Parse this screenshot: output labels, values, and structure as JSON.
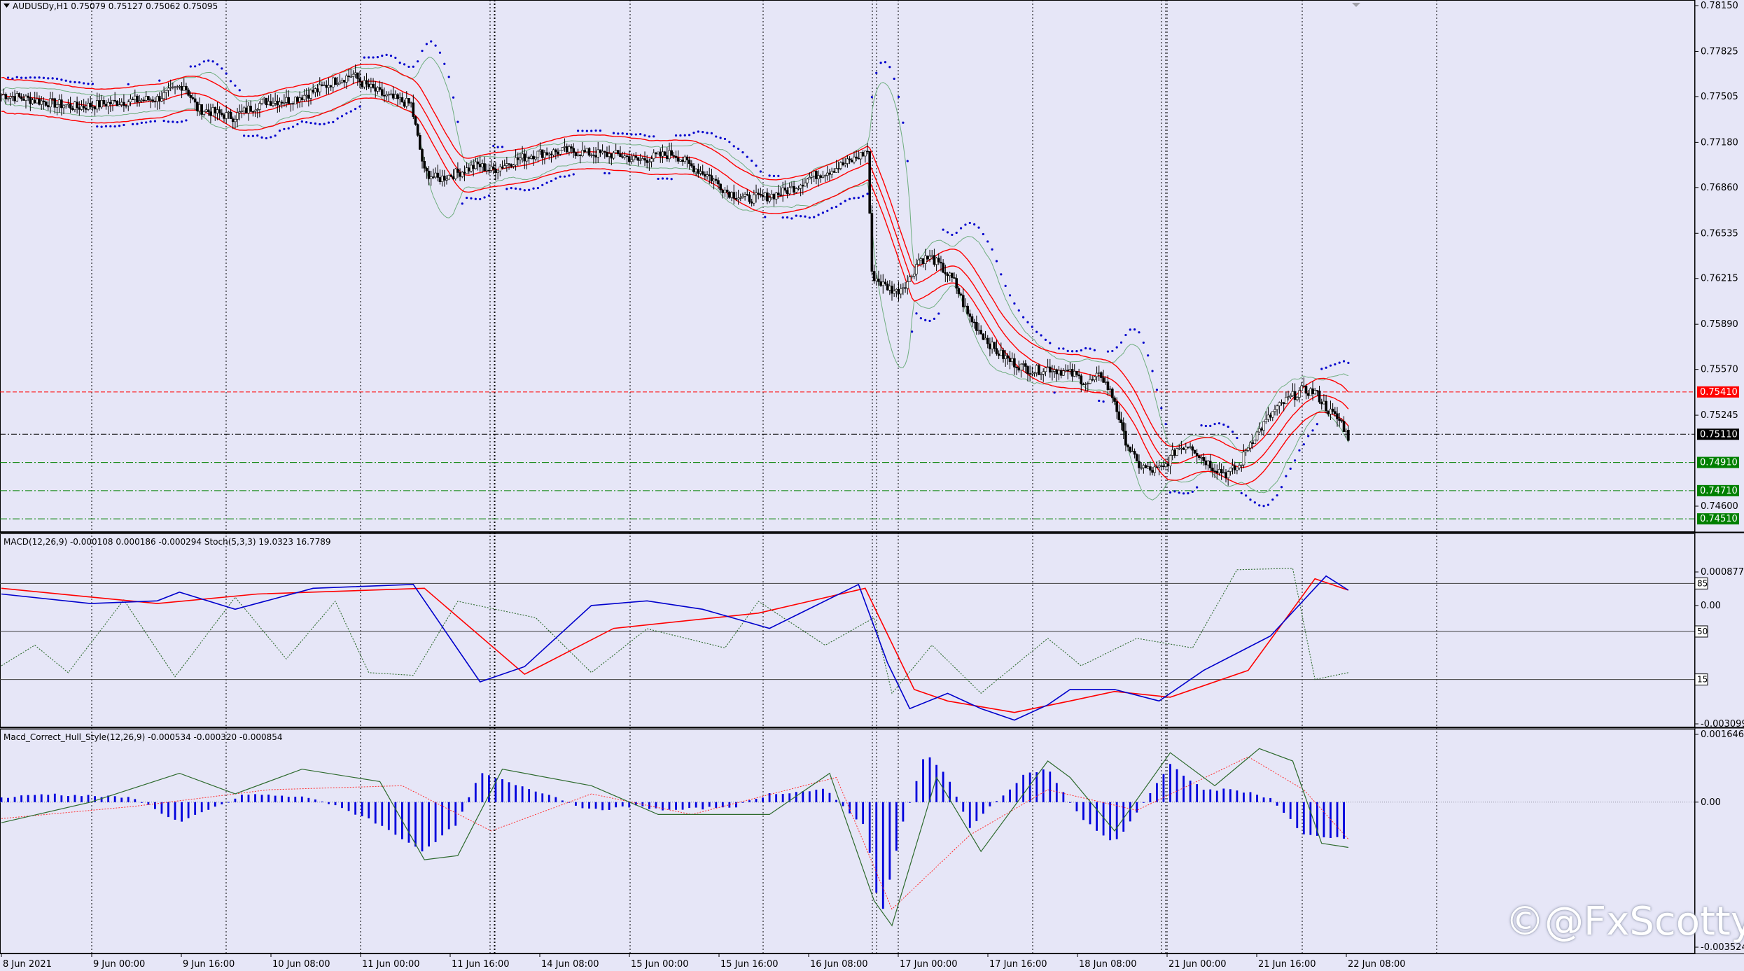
{
  "window": {
    "symbol_line": "AUDUSDy,H1  0.75079 0.75127 0.75062 0.75095"
  },
  "colors": {
    "background": "#e6e6f7",
    "candle": "#000000",
    "envelope_band": "#ff0000",
    "bollinger_band": "#6fae7f",
    "sar_dots": "#0000cc",
    "macd_main": "#0000cc",
    "macd_signal": "#ff0000",
    "stoch_line": "#2d6a2d",
    "hist_bars": "#0000dd",
    "hull_signal": "#ff3030",
    "hull_line": "#2d6a2d",
    "price_tag_red": "#ff0000",
    "price_tag_black": "#000000",
    "price_tag_green": "#008000"
  },
  "watermark": {
    "text": "@FxScotty",
    "icon": "copyright-circle-icon"
  },
  "chart_data": [
    {
      "type": "candlestick",
      "title": "AUDUSDy,H1  0.75079 0.75127 0.75062 0.75095",
      "x_labels": [
        "8 Jun 2021",
        "9 Jun 00:00",
        "9 Jun 16:00",
        "10 Jun 08:00",
        "11 Jun 00:00",
        "11 Jun 16:00",
        "14 Jun 08:00",
        "15 Jun 00:00",
        "15 Jun 16:00",
        "16 Jun 08:00",
        "17 Jun 00:00",
        "17 Jun 16:00",
        "18 Jun 08:00",
        "21 Jun 00:00",
        "21 Jun 16:00",
        "22 Jun 08:00"
      ],
      "y_ticks": [
        "0.78150",
        "0.77825",
        "0.77505",
        "0.77180",
        "0.76860",
        "0.76535",
        "0.76215",
        "0.75890",
        "0.75570",
        "0.75245",
        "0.74600"
      ],
      "ylim": [
        0.7447,
        0.7815
      ],
      "price_tags": [
        {
          "label": "0.75410",
          "value": 0.7541,
          "style": "red"
        },
        {
          "label": "0.75110",
          "value": 0.7511,
          "style": "black"
        },
        {
          "label": "0.74910",
          "value": 0.7491,
          "style": "green"
        },
        {
          "label": "0.74710",
          "value": 0.7471,
          "style": "green"
        },
        {
          "label": "0.74510",
          "value": 0.7451,
          "style": "green"
        }
      ],
      "close_path": [
        [
          0,
          0.7752
        ],
        [
          18,
          0.7747
        ],
        [
          34,
          0.7743
        ],
        [
          55,
          0.7747
        ],
        [
          70,
          0.7749
        ],
        [
          82,
          0.7759
        ],
        [
          88,
          0.7742
        ],
        [
          104,
          0.7736
        ],
        [
          118,
          0.7747
        ],
        [
          130,
          0.7748
        ],
        [
          142,
          0.7755
        ],
        [
          150,
          0.7762
        ],
        [
          158,
          0.7766
        ],
        [
          162,
          0.776
        ],
        [
          172,
          0.7751
        ],
        [
          184,
          0.7745
        ],
        [
          190,
          0.7697
        ],
        [
          196,
          0.7692
        ],
        [
          206,
          0.7697
        ],
        [
          214,
          0.7702
        ],
        [
          220,
          0.7698
        ],
        [
          230,
          0.7705
        ],
        [
          240,
          0.771
        ],
        [
          254,
          0.7712
        ],
        [
          266,
          0.771
        ],
        [
          278,
          0.7709
        ],
        [
          286,
          0.7705
        ],
        [
          294,
          0.7708
        ],
        [
          302,
          0.771
        ],
        [
          310,
          0.7701
        ],
        [
          318,
          0.7694
        ],
        [
          326,
          0.7683
        ],
        [
          334,
          0.7678
        ],
        [
          342,
          0.7679
        ],
        [
          350,
          0.7682
        ],
        [
          356,
          0.7686
        ],
        [
          364,
          0.7694
        ],
        [
          372,
          0.7698
        ],
        [
          382,
          0.7705
        ],
        [
          389,
          0.7712
        ],
        [
          391,
          0.7624
        ],
        [
          396,
          0.7617
        ],
        [
          402,
          0.7612
        ],
        [
          408,
          0.7621
        ],
        [
          412,
          0.7635
        ],
        [
          418,
          0.7636
        ],
        [
          424,
          0.7626
        ],
        [
          428,
          0.7619
        ],
        [
          434,
          0.7596
        ],
        [
          440,
          0.7583
        ],
        [
          446,
          0.7571
        ],
        [
          452,
          0.7564
        ],
        [
          458,
          0.7559
        ],
        [
          464,
          0.7556
        ],
        [
          470,
          0.7558
        ],
        [
          476,
          0.7556
        ],
        [
          482,
          0.7553
        ],
        [
          488,
          0.7547
        ],
        [
          494,
          0.7553
        ],
        [
          500,
          0.7535
        ],
        [
          504,
          0.751
        ],
        [
          510,
          0.749
        ],
        [
          516,
          0.7485
        ],
        [
          522,
          0.7487
        ],
        [
          528,
          0.7501
        ],
        [
          534,
          0.7504
        ],
        [
          538,
          0.7496
        ],
        [
          544,
          0.7488
        ],
        [
          550,
          0.7483
        ],
        [
          556,
          0.7488
        ],
        [
          560,
          0.7503
        ],
        [
          566,
          0.7516
        ],
        [
          572,
          0.7528
        ],
        [
          578,
          0.7536
        ],
        [
          584,
          0.7542
        ],
        [
          590,
          0.7541
        ],
        [
          596,
          0.7528
        ],
        [
          602,
          0.7519
        ],
        [
          605,
          0.7509
        ]
      ],
      "overlays": [
        "Envelopes",
        "Bollinger Bands",
        "Parabolic SAR"
      ]
    },
    {
      "type": "line",
      "title": "MACD(12,26,9) -0.000108 0.000186 -0.000294  Stoch(5,3,3) 19.0323 16.7789",
      "y_ticks": [
        "0.000877",
        "0.00",
        "-0.003099"
      ],
      "levels": [
        "85",
        "50",
        "15"
      ],
      "series": [
        {
          "name": "MACD",
          "points": [
            [
              0,
              0.0003
            ],
            [
              40,
              5e-05
            ],
            [
              70,
              0.00012
            ],
            [
              80,
              0.00035
            ],
            [
              105,
              -0.0001
            ],
            [
              140,
              0.00045
            ],
            [
              185,
              0.00055
            ],
            [
              215,
              -0.002
            ],
            [
              235,
              -0.0016
            ],
            [
              265,
              0.0
            ],
            [
              290,
              0.00012
            ],
            [
              315,
              -0.0001
            ],
            [
              345,
              -0.0006
            ],
            [
              385,
              0.00055
            ],
            [
              398,
              -0.0015
            ],
            [
              408,
              -0.0027
            ],
            [
              425,
              -0.0023
            ],
            [
              440,
              -0.0027
            ],
            [
              455,
              -0.003
            ],
            [
              470,
              -0.0026
            ],
            [
              480,
              -0.0022
            ],
            [
              500,
              -0.0022
            ],
            [
              520,
              -0.0025
            ],
            [
              540,
              -0.0017
            ],
            [
              570,
              -0.0008
            ],
            [
              595,
              0.00077
            ],
            [
              605,
              0.0004
            ]
          ]
        },
        {
          "name": "Signal",
          "points": [
            [
              0,
              0.00045
            ],
            [
              70,
              5e-05
            ],
            [
              115,
              0.0003
            ],
            [
              190,
              0.00045
            ],
            [
              235,
              -0.0018
            ],
            [
              275,
              -0.0006
            ],
            [
              340,
              -0.0002
            ],
            [
              388,
              0.00045
            ],
            [
              410,
              -0.0022
            ],
            [
              425,
              -0.0025
            ],
            [
              455,
              -0.0028
            ],
            [
              480,
              -0.0025
            ],
            [
              500,
              -0.00225
            ],
            [
              525,
              -0.0024
            ],
            [
              560,
              -0.0017
            ],
            [
              590,
              0.0007
            ],
            [
              605,
              0.0004
            ]
          ]
        },
        {
          "name": "Stoch",
          "points": [
            [
              0,
              25
            ],
            [
              15,
              40
            ],
            [
              30,
              20
            ],
            [
              55,
              73
            ],
            [
              78,
              17
            ],
            [
              105,
              75
            ],
            [
              128,
              30
            ],
            [
              150,
              72
            ],
            [
              165,
              20
            ],
            [
              185,
              18
            ],
            [
              205,
              72
            ],
            [
              240,
              60
            ],
            [
              265,
              20
            ],
            [
              290,
              52
            ],
            [
              325,
              38
            ],
            [
              340,
              72
            ],
            [
              370,
              40
            ],
            [
              392,
              60
            ],
            [
              400,
              5
            ],
            [
              418,
              40
            ],
            [
              440,
              5
            ],
            [
              470,
              45
            ],
            [
              485,
              25
            ],
            [
              510,
              45
            ],
            [
              535,
              38
            ],
            [
              555,
              95
            ],
            [
              580,
              96
            ],
            [
              590,
              15
            ],
            [
              605,
              20
            ]
          ]
        }
      ]
    },
    {
      "type": "bar",
      "title": "Macd_Correct_Hull_Style(12,26,9) -0.000534 -0.000320 -0.000854",
      "y_ticks": [
        "0.001646",
        "0.00",
        "-0.003524"
      ],
      "series": [
        {
          "name": "Histogram",
          "points": [
            [
              0,
              0.0001
            ],
            [
              20,
              0.0002
            ],
            [
              60,
              0.0001
            ],
            [
              80,
              -0.0005
            ],
            [
              110,
              0.0002
            ],
            [
              140,
              0.0001
            ],
            [
              165,
              -0.0004
            ],
            [
              190,
              -0.0012
            ],
            [
              205,
              -0.0005
            ],
            [
              215,
              0.0007
            ],
            [
              245,
              0.0002
            ],
            [
              265,
              -0.0002
            ],
            [
              285,
              -0.0001
            ],
            [
              300,
              -0.0002
            ],
            [
              330,
              -0.0001
            ],
            [
              345,
              0.0002
            ],
            [
              370,
              0.0003
            ],
            [
              388,
              -0.0006
            ],
            [
              395,
              -0.0028
            ],
            [
              405,
              -0.0005
            ],
            [
              415,
              0.0012
            ],
            [
              425,
              0.0006
            ],
            [
              435,
              -0.0006
            ],
            [
              460,
              0.0007
            ],
            [
              470,
              0.0008
            ],
            [
              485,
              -0.0004
            ],
            [
              500,
              -0.001
            ],
            [
              525,
              0.0009
            ],
            [
              540,
              0.0003
            ],
            [
              555,
              0.0003
            ],
            [
              570,
              0.0001
            ],
            [
              585,
              -0.0008
            ],
            [
              605,
              -0.0009
            ]
          ]
        },
        {
          "name": "Signal",
          "points": [
            [
              0,
              -0.0004
            ],
            [
              60,
              -0.0001
            ],
            [
              120,
              0.0003
            ],
            [
              180,
              0.0004
            ],
            [
              220,
              -0.0007
            ],
            [
              265,
              0.0002
            ],
            [
              310,
              -0.0003
            ],
            [
              375,
              0.0006
            ],
            [
              400,
              -0.0026
            ],
            [
              435,
              -0.0008
            ],
            [
              470,
              0.0003
            ],
            [
              510,
              -0.0002
            ],
            [
              560,
              0.0011
            ],
            [
              585,
              0.0003
            ],
            [
              605,
              -0.0009
            ]
          ]
        },
        {
          "name": "Hull",
          "points": [
            [
              0,
              -0.0005
            ],
            [
              40,
              0.0
            ],
            [
              80,
              0.0007
            ],
            [
              105,
              0.0002
            ],
            [
              135,
              0.0008
            ],
            [
              170,
              0.0005
            ],
            [
              190,
              -0.0014
            ],
            [
              205,
              -0.0013
            ],
            [
              225,
              0.0008
            ],
            [
              265,
              0.0004
            ],
            [
              295,
              -0.0003
            ],
            [
              345,
              -0.0003
            ],
            [
              372,
              0.0007
            ],
            [
              392,
              -0.0024
            ],
            [
              400,
              -0.003
            ],
            [
              420,
              0.0006
            ],
            [
              440,
              -0.0012
            ],
            [
              470,
              0.001
            ],
            [
              480,
              0.0006
            ],
            [
              500,
              -0.0007
            ],
            [
              525,
              0.0012
            ],
            [
              545,
              0.0004
            ],
            [
              565,
              0.0013
            ],
            [
              580,
              0.001
            ],
            [
              593,
              -0.001
            ],
            [
              605,
              -0.0011
            ]
          ]
        }
      ]
    }
  ]
}
